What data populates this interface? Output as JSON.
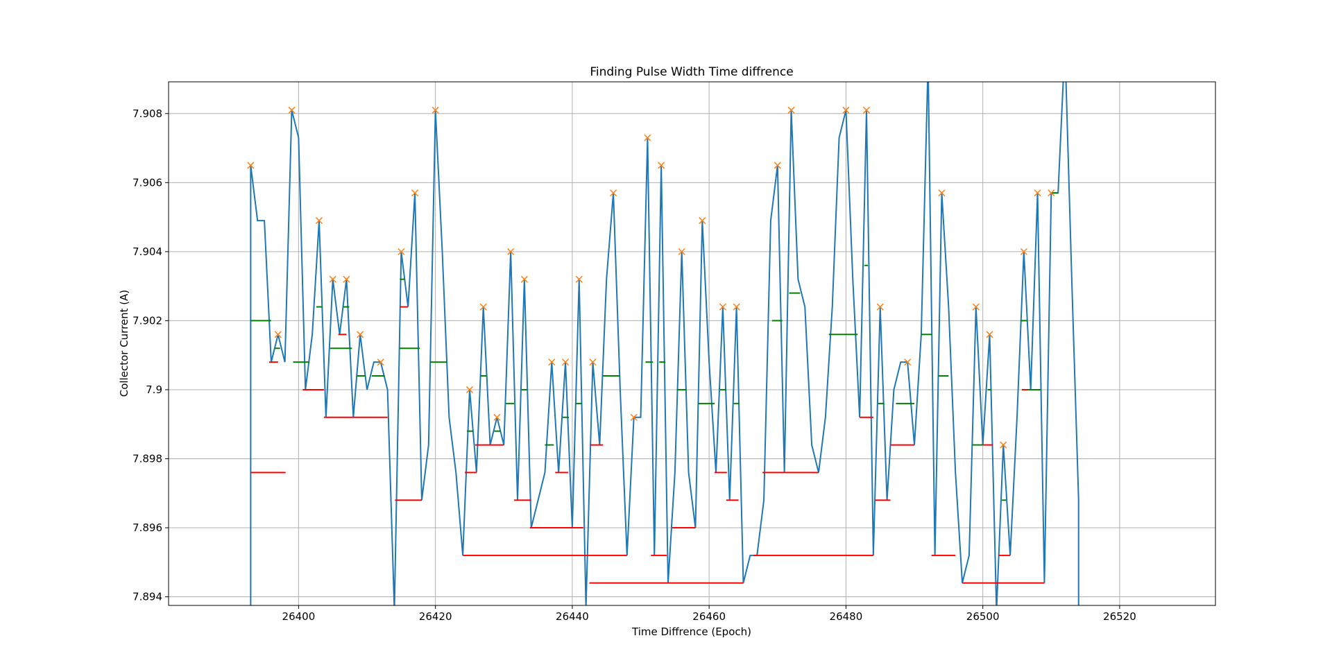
{
  "chart_data": {
    "type": "line",
    "title": "Finding Pulse Width Time diffrence",
    "xlabel": "Time Diffrence (Epoch)",
    "ylabel": "Collector Current (A)",
    "xlim": [
      26381,
      26534
    ],
    "ylim": [
      7.89375,
      7.90892
    ],
    "xticks": [
      26400,
      26420,
      26440,
      26460,
      26480,
      26500,
      26520
    ],
    "yticks": [
      7.894,
      7.896,
      7.898,
      7.9,
      7.902,
      7.904,
      7.906,
      7.908
    ],
    "grid": true,
    "x": [
      26393,
      26393,
      26394,
      26395,
      26396,
      26397,
      26398,
      26399,
      26400,
      26401,
      26402,
      26403,
      26404,
      26405,
      26406,
      26407,
      26408,
      26409,
      26410,
      26411,
      26412,
      26413,
      26414,
      26415,
      26416,
      26417,
      26418,
      26419,
      26420,
      26421,
      26422,
      26423,
      26424,
      26425,
      26426,
      26427,
      26428,
      26429,
      26430,
      26431,
      26432,
      26433,
      26434,
      26435,
      26436,
      26437,
      26438,
      26439,
      26440,
      26441,
      26442,
      26443,
      26444,
      26445,
      26446,
      26447,
      26448,
      26449,
      26450,
      26451,
      26452,
      26453,
      26454,
      26455,
      26456,
      26457,
      26458,
      26459,
      26460,
      26461,
      26462,
      26463,
      26464,
      26465,
      26466,
      26467,
      26468,
      26469,
      26470,
      26471,
      26472,
      26473,
      26474,
      26475,
      26476,
      26477,
      26478,
      26479,
      26480,
      26481,
      26482,
      26483,
      26484,
      26485,
      26486,
      26487,
      26488,
      26489,
      26490,
      26491,
      26492,
      26493,
      26494,
      26495,
      26496,
      26497,
      26498,
      26499,
      26500,
      26501,
      26502,
      26503,
      26504,
      26505,
      26506,
      26507,
      26508,
      26509,
      26510,
      26511,
      26512,
      26513,
      26514,
      26514
    ],
    "series": [
      {
        "color": "#1f77b4",
        "values": [
          7.893,
          7.9065,
          7.9049,
          7.9049,
          7.9008,
          7.9016,
          7.9008,
          7.9081,
          7.9073,
          7.9,
          7.9016,
          7.9049,
          7.8992,
          7.9032,
          7.9016,
          7.9032,
          7.8992,
          7.9016,
          7.9,
          7.9008,
          7.9008,
          7.9,
          7.8936,
          7.904,
          7.9024,
          7.9057,
          7.8968,
          7.8984,
          7.9081,
          7.904,
          7.8992,
          7.8976,
          7.8952,
          7.9,
          7.8976,
          7.9024,
          7.8984,
          7.8992,
          7.8984,
          7.904,
          7.8968,
          7.9032,
          7.896,
          7.8968,
          7.8976,
          7.9008,
          7.8976,
          7.9008,
          7.896,
          7.9032,
          7.8937,
          7.9008,
          7.8984,
          7.9032,
          7.9057,
          7.9,
          7.8952,
          7.8992,
          7.8992,
          7.9073,
          7.8952,
          7.9065,
          7.8944,
          7.8976,
          7.904,
          7.8976,
          7.896,
          7.9049,
          7.9008,
          7.8976,
          7.9024,
          7.8968,
          7.9024,
          7.8944,
          7.8952,
          7.8952,
          7.8968,
          7.9049,
          7.9065,
          7.8976,
          7.9081,
          7.9032,
          7.9024,
          7.8984,
          7.8976,
          7.8992,
          7.9024,
          7.9073,
          7.9081,
          7.9032,
          7.8992,
          7.9081,
          7.8952,
          7.9024,
          7.8968,
          7.9,
          7.9008,
          7.9008,
          7.8984,
          7.9016,
          7.9095,
          7.8952,
          7.9057,
          7.9024,
          7.8976,
          7.8944,
          7.8952,
          7.9024,
          7.8984,
          7.9016,
          7.8936,
          7.8984,
          7.8952,
          7.8992,
          7.904,
          7.9,
          7.9057,
          7.8944,
          7.9057,
          7.9057,
          7.91,
          7.9032,
          7.8968,
          7.893
        ]
      }
    ],
    "peaks": {
      "color": "#ff7f0e",
      "x": [
        26393,
        26397,
        26399,
        26403,
        26405,
        26407,
        26409,
        26412,
        26415,
        26417,
        26420,
        26425,
        26427,
        26429,
        26431,
        26433,
        26437,
        26439,
        26441,
        26443,
        26446,
        26449,
        26451,
        26453,
        26456,
        26459,
        26462,
        26464,
        26470,
        26472,
        26480,
        26483,
        26485,
        26489,
        26494,
        26499,
        26501,
        26503,
        26506,
        26508,
        26510
      ],
      "values": [
        7.9065,
        7.9016,
        7.9081,
        7.9049,
        7.9032,
        7.9032,
        7.9016,
        7.9008,
        7.904,
        7.9057,
        7.9081,
        7.9,
        7.9024,
        7.8992,
        7.904,
        7.9032,
        7.9008,
        7.9008,
        7.9032,
        7.9008,
        7.9057,
        7.8992,
        7.9073,
        7.9065,
        7.904,
        7.9049,
        7.9024,
        7.9024,
        7.9065,
        7.9081,
        7.9081,
        7.9081,
        7.9024,
        7.9008,
        7.9057,
        7.9024,
        7.9016,
        7.8984,
        7.904,
        7.9057,
        7.9057
      ]
    },
    "hlines": [
      {
        "color": "#ff0000",
        "y": [
          7.8976,
          7.9008,
          7.9,
          7.9016,
          7.8992,
          7.9024,
          7.8968,
          7.8976,
          7.8984,
          7.8968,
          7.896,
          7.8976,
          7.8952,
          7.8984,
          7.8944,
          7.8952,
          7.896,
          7.8976,
          7.8968,
          7.8976,
          7.8952,
          7.8992,
          7.8968,
          7.8984,
          7.8952,
          7.8944,
          7.8984,
          7.8952,
          7.9
        ],
        "xmin": [
          26393,
          26395.7,
          26400.6,
          26405.8,
          26403.7,
          26414.8,
          26414.1,
          26424.3,
          26425.8,
          26431.5,
          26433.8,
          26437.5,
          26424,
          26442.6,
          26442.5,
          26451.5,
          26454.6,
          26460.8,
          26462.5,
          26467.8,
          26466.5,
          26482,
          26484.3,
          26486.5,
          26492.5,
          26497,
          26500,
          26502.3,
          26505.7
        ],
        "xmax": [
          26398.1,
          26397,
          26403.7,
          26407,
          26413,
          26416,
          26418,
          26426,
          26430,
          26434,
          26441.6,
          26439.4,
          26448,
          26444.5,
          26465,
          26453.8,
          26458,
          26462.6,
          26464.3,
          26476,
          26484,
          26484,
          26486.5,
          26490,
          26496,
          26509,
          26501.5,
          26504,
          26508.5
        ]
      },
      {
        "color": "#008000",
        "y": [
          7.902,
          7.9012,
          7.9008,
          7.9024,
          7.9012,
          7.9024,
          7.9004,
          7.9004,
          7.9032,
          7.9012,
          7.9008,
          7.8988,
          7.9004,
          7.8988,
          7.8996,
          7.9,
          7.8984,
          7.8992,
          7.8996,
          7.9004,
          7.9008,
          7.9008,
          7.9,
          7.8996,
          7.9,
          7.8996,
          7.902,
          7.9028,
          7.9016,
          7.9036,
          7.8996,
          7.8996,
          7.9016,
          7.9004,
          7.8984,
          7.9,
          7.8968,
          7.902,
          7.9,
          7.9057
        ],
        "xmin": [
          26393,
          26396.5,
          26399.2,
          26402.6,
          26404.6,
          26406.5,
          26408.5,
          26410.7,
          26414.8,
          26414.7,
          26419.2,
          26424.6,
          26426.6,
          26428.6,
          26430.3,
          26432.6,
          26436,
          26438.6,
          26440.5,
          26444.5,
          26450.7,
          26452.7,
          26455.3,
          26458.4,
          26461.6,
          26463.6,
          26469.2,
          26471.7,
          26477.5,
          26482.7,
          26484.7,
          26487.3,
          26491,
          26493.5,
          26498.5,
          26500.7,
          26502.8,
          26505.5,
          26506.5,
          26510
        ],
        "xmax": [
          26396,
          26397.3,
          26401.6,
          26403.5,
          26407.8,
          26407.4,
          26409.8,
          26412.6,
          26415.5,
          26417.7,
          26421.7,
          26425.5,
          26427.5,
          26429.5,
          26431.5,
          26433.4,
          26437.3,
          26439.5,
          26441.4,
          26447,
          26451.8,
          26453.6,
          26456.7,
          26460.8,
          26462.5,
          26464.4,
          26470.7,
          26473.3,
          26481.7,
          26483.2,
          26485.6,
          26490,
          26492.6,
          26495,
          26500,
          26501.3,
          26503.4,
          26506.5,
          26508.5,
          26511
        ]
      }
    ]
  }
}
